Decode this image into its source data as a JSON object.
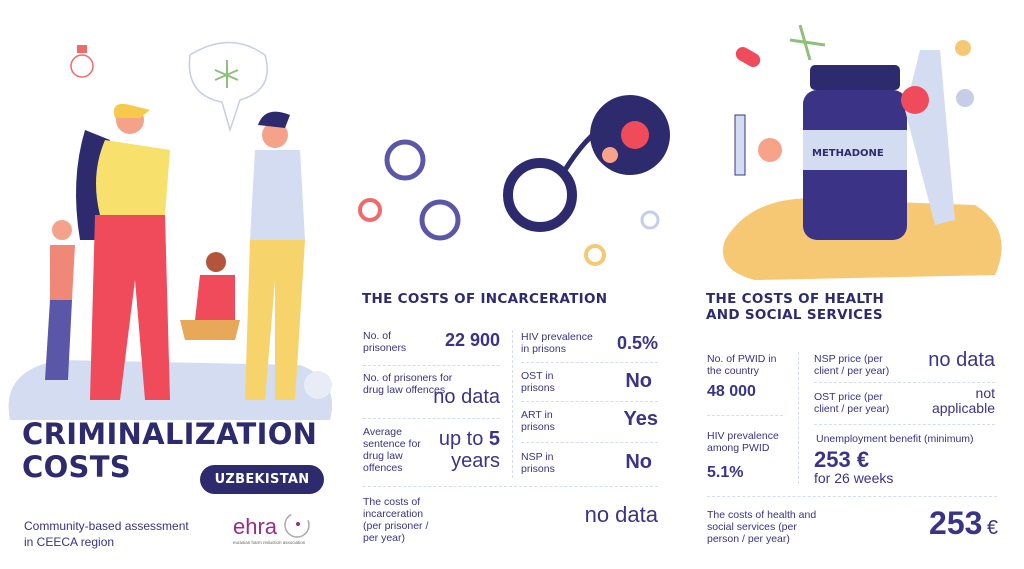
{
  "title": {
    "line1": "CRIMINALIZATION",
    "line2": "COSTS",
    "country": "UZBEKISTAN"
  },
  "footer": {
    "subtitle_line1": "Community-based assessment",
    "subtitle_line2": "in CEECA region",
    "logo_text": "ehra",
    "logo_caption": "eurasian harm reduction association"
  },
  "incarceration": {
    "heading": "THE COSTS OF INCARCERATION",
    "prisoners": {
      "label": "No. of prisoners",
      "value": "22 900"
    },
    "drug_prisoners": {
      "label": "No. of prisoners for drug law offences",
      "value": "no data"
    },
    "sentence": {
      "label": "Average sentence for drug law offences",
      "value_prefix": "up to",
      "value_number": "5",
      "value_suffix": "years"
    },
    "hiv": {
      "label": "HIV prevalence in prisons",
      "value": "0.5%"
    },
    "ost": {
      "label": "OST in prisons",
      "value": "No"
    },
    "art": {
      "label": "ART in prisons",
      "value": "Yes"
    },
    "nsp": {
      "label": "NSP in prisons",
      "value": "No"
    },
    "cost": {
      "label": "The costs of incarceration (per prisoner / per year)",
      "value": "no data"
    }
  },
  "health": {
    "heading_line1": "THE COSTS OF HEALTH",
    "heading_line2": "AND SOCIAL SERVICES",
    "pwid": {
      "label": "No. of PWID in the country",
      "value": "48 000"
    },
    "hiv_pwid": {
      "label": "HIV prevalence among PWID",
      "value": "5.1%"
    },
    "nsp_price": {
      "label": "NSP price (per client / per year)",
      "value": "no data"
    },
    "ost_price": {
      "label": "OST price (per client / per year)",
      "value_line1": "not",
      "value_line2": "applicable"
    },
    "unemployment": {
      "label": "Unemployment benefit (minimum)",
      "value": "253 €",
      "note": "for 26 weeks"
    },
    "cost": {
      "label": "The costs of health and social services (per person / per year)",
      "value": "253",
      "currency": "€"
    }
  },
  "illustration": {
    "bottle_label": "METHADONE"
  },
  "colors": {
    "navy": "#2e2a6e",
    "accent": "#3b3486",
    "blob": "#d4dcf1",
    "sand": "#f7c873",
    "red": "#ef4b5b",
    "ehra": "#9a2b8c"
  }
}
